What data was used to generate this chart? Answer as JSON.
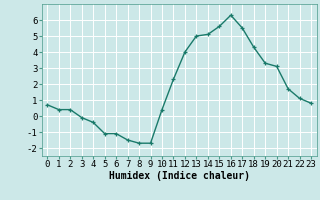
{
  "x": [
    0,
    1,
    2,
    3,
    4,
    5,
    6,
    7,
    8,
    9,
    10,
    11,
    12,
    13,
    14,
    15,
    16,
    17,
    18,
    19,
    20,
    21,
    22,
    23
  ],
  "y": [
    0.7,
    0.4,
    0.4,
    -0.1,
    -0.4,
    -1.1,
    -1.1,
    -1.5,
    -1.7,
    -1.7,
    0.4,
    2.3,
    4.0,
    5.0,
    5.1,
    5.6,
    6.3,
    5.5,
    4.3,
    3.3,
    3.1,
    1.7,
    1.1,
    0.8
  ],
  "line_color": "#1a7a6a",
  "marker": "+",
  "markersize": 3,
  "linewidth": 1.0,
  "xlabel": "Humidex (Indice chaleur)",
  "xlabel_fontsize": 7,
  "xlim": [
    -0.5,
    23.5
  ],
  "ylim": [
    -2.5,
    7.0
  ],
  "yticks": [
    -2,
    -1,
    0,
    1,
    2,
    3,
    4,
    5,
    6
  ],
  "xticks": [
    0,
    1,
    2,
    3,
    4,
    5,
    6,
    7,
    8,
    9,
    10,
    11,
    12,
    13,
    14,
    15,
    16,
    17,
    18,
    19,
    20,
    21,
    22,
    23
  ],
  "xtick_labels": [
    "0",
    "1",
    "2",
    "3",
    "4",
    "5",
    "6",
    "7",
    "8",
    "9",
    "10",
    "11",
    "12",
    "13",
    "14",
    "15",
    "16",
    "17",
    "18",
    "19",
    "20",
    "21",
    "22",
    "23"
  ],
  "background_color": "#cce8e8",
  "grid_color": "#ffffff",
  "tick_fontsize": 6.5,
  "spine_color": "#4a9a8a"
}
